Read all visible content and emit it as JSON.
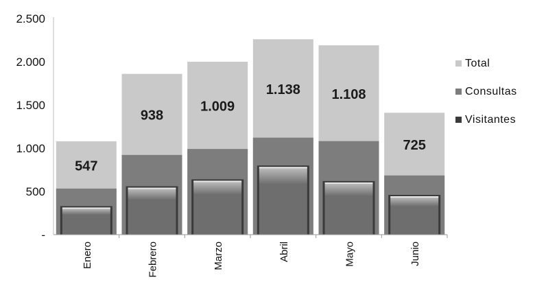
{
  "chart_data": {
    "type": "bar",
    "stacked": false,
    "overlapping": true,
    "categories": [
      "Enero",
      "Febrero",
      "Marzo",
      "Abril",
      "Mayo",
      "Junio"
    ],
    "series": [
      {
        "name": "Total",
        "values": [
          1080,
          1860,
          2000,
          2260,
          2190,
          1410
        ],
        "color": "#c9c9c9"
      },
      {
        "name": "Consultas",
        "values": [
          533,
          922,
          991,
          1122,
          1082,
          685
        ],
        "color": "#7d7d7d"
      },
      {
        "name": "Visitantes",
        "values": [
          330,
          560,
          640,
          800,
          620,
          460
        ],
        "color": "#3a3a3a"
      }
    ],
    "data_labels": [
      "547",
      "938",
      "1.009",
      "1.138",
      "1.108",
      "725"
    ],
    "ylim": [
      0,
      2500
    ],
    "yticks": [
      0,
      500,
      1000,
      1500,
      2000,
      2500
    ],
    "ytick_labels": [
      "-",
      "500",
      "1.000",
      "1.500",
      "2.000",
      "2.500"
    ],
    "grid": false,
    "legend_position": "right",
    "title": "",
    "xlabel": "",
    "ylabel": ""
  }
}
